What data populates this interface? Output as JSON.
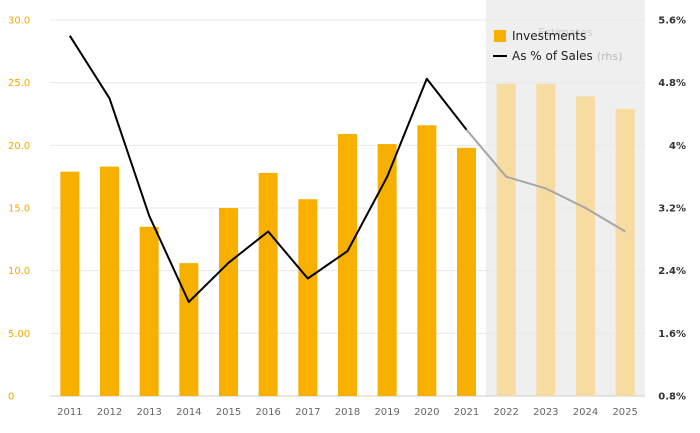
{
  "chart_data": {
    "type": "bar",
    "categories": [
      "2011",
      "2012",
      "2013",
      "2014",
      "2015",
      "2016",
      "2017",
      "2018",
      "2019",
      "2020",
      "2021",
      "2022",
      "2023",
      "2024",
      "2025"
    ],
    "series": [
      {
        "name": "Investments",
        "type": "bar",
        "axis": "left",
        "values": [
          17.9,
          18.3,
          13.5,
          10.6,
          15.0,
          17.8,
          15.7,
          20.9,
          20.1,
          21.6,
          19.8,
          24.9,
          24.9,
          23.9,
          22.9
        ],
        "estimated_from": "2022"
      },
      {
        "name": "As % of Sales",
        "name_suffix": "(rhs)",
        "type": "line",
        "axis": "right",
        "values": [
          5.4,
          4.6,
          3.1,
          2.0,
          2.5,
          2.9,
          2.3,
          2.65,
          3.6,
          4.85,
          4.2,
          3.6,
          3.45,
          3.2,
          2.9
        ],
        "estimated_from": "2021"
      }
    ],
    "left_axis": {
      "ylim": [
        0,
        30
      ],
      "ticks": [
        0,
        5,
        10,
        15,
        20,
        25,
        30
      ],
      "tick_labels": [
        "0",
        "5.00",
        "10.0",
        "15.0",
        "20.0",
        "25.0",
        "30.0"
      ]
    },
    "right_axis": {
      "ylim": [
        0.8,
        5.6
      ],
      "ticks": [
        0.8,
        1.6,
        2.4,
        3.2,
        4.0,
        4.8,
        5.6
      ],
      "tick_labels": [
        "0.8%",
        "1.6%",
        "2.4%",
        "3.2%",
        "4%",
        "4.8%",
        "5.6%"
      ]
    },
    "estimates_label": "Estimates",
    "estimates_start": "2022",
    "grid": true,
    "legend_position": "top-right",
    "colors": {
      "bar": "#f8b000",
      "bar_estimate": "#f6dca0",
      "line": "#000000",
      "line_estimate": "#a6a6a6",
      "estimate_band": "#efefef",
      "grid": "#e8e8e8",
      "left_ticks": "#f0a800"
    }
  }
}
